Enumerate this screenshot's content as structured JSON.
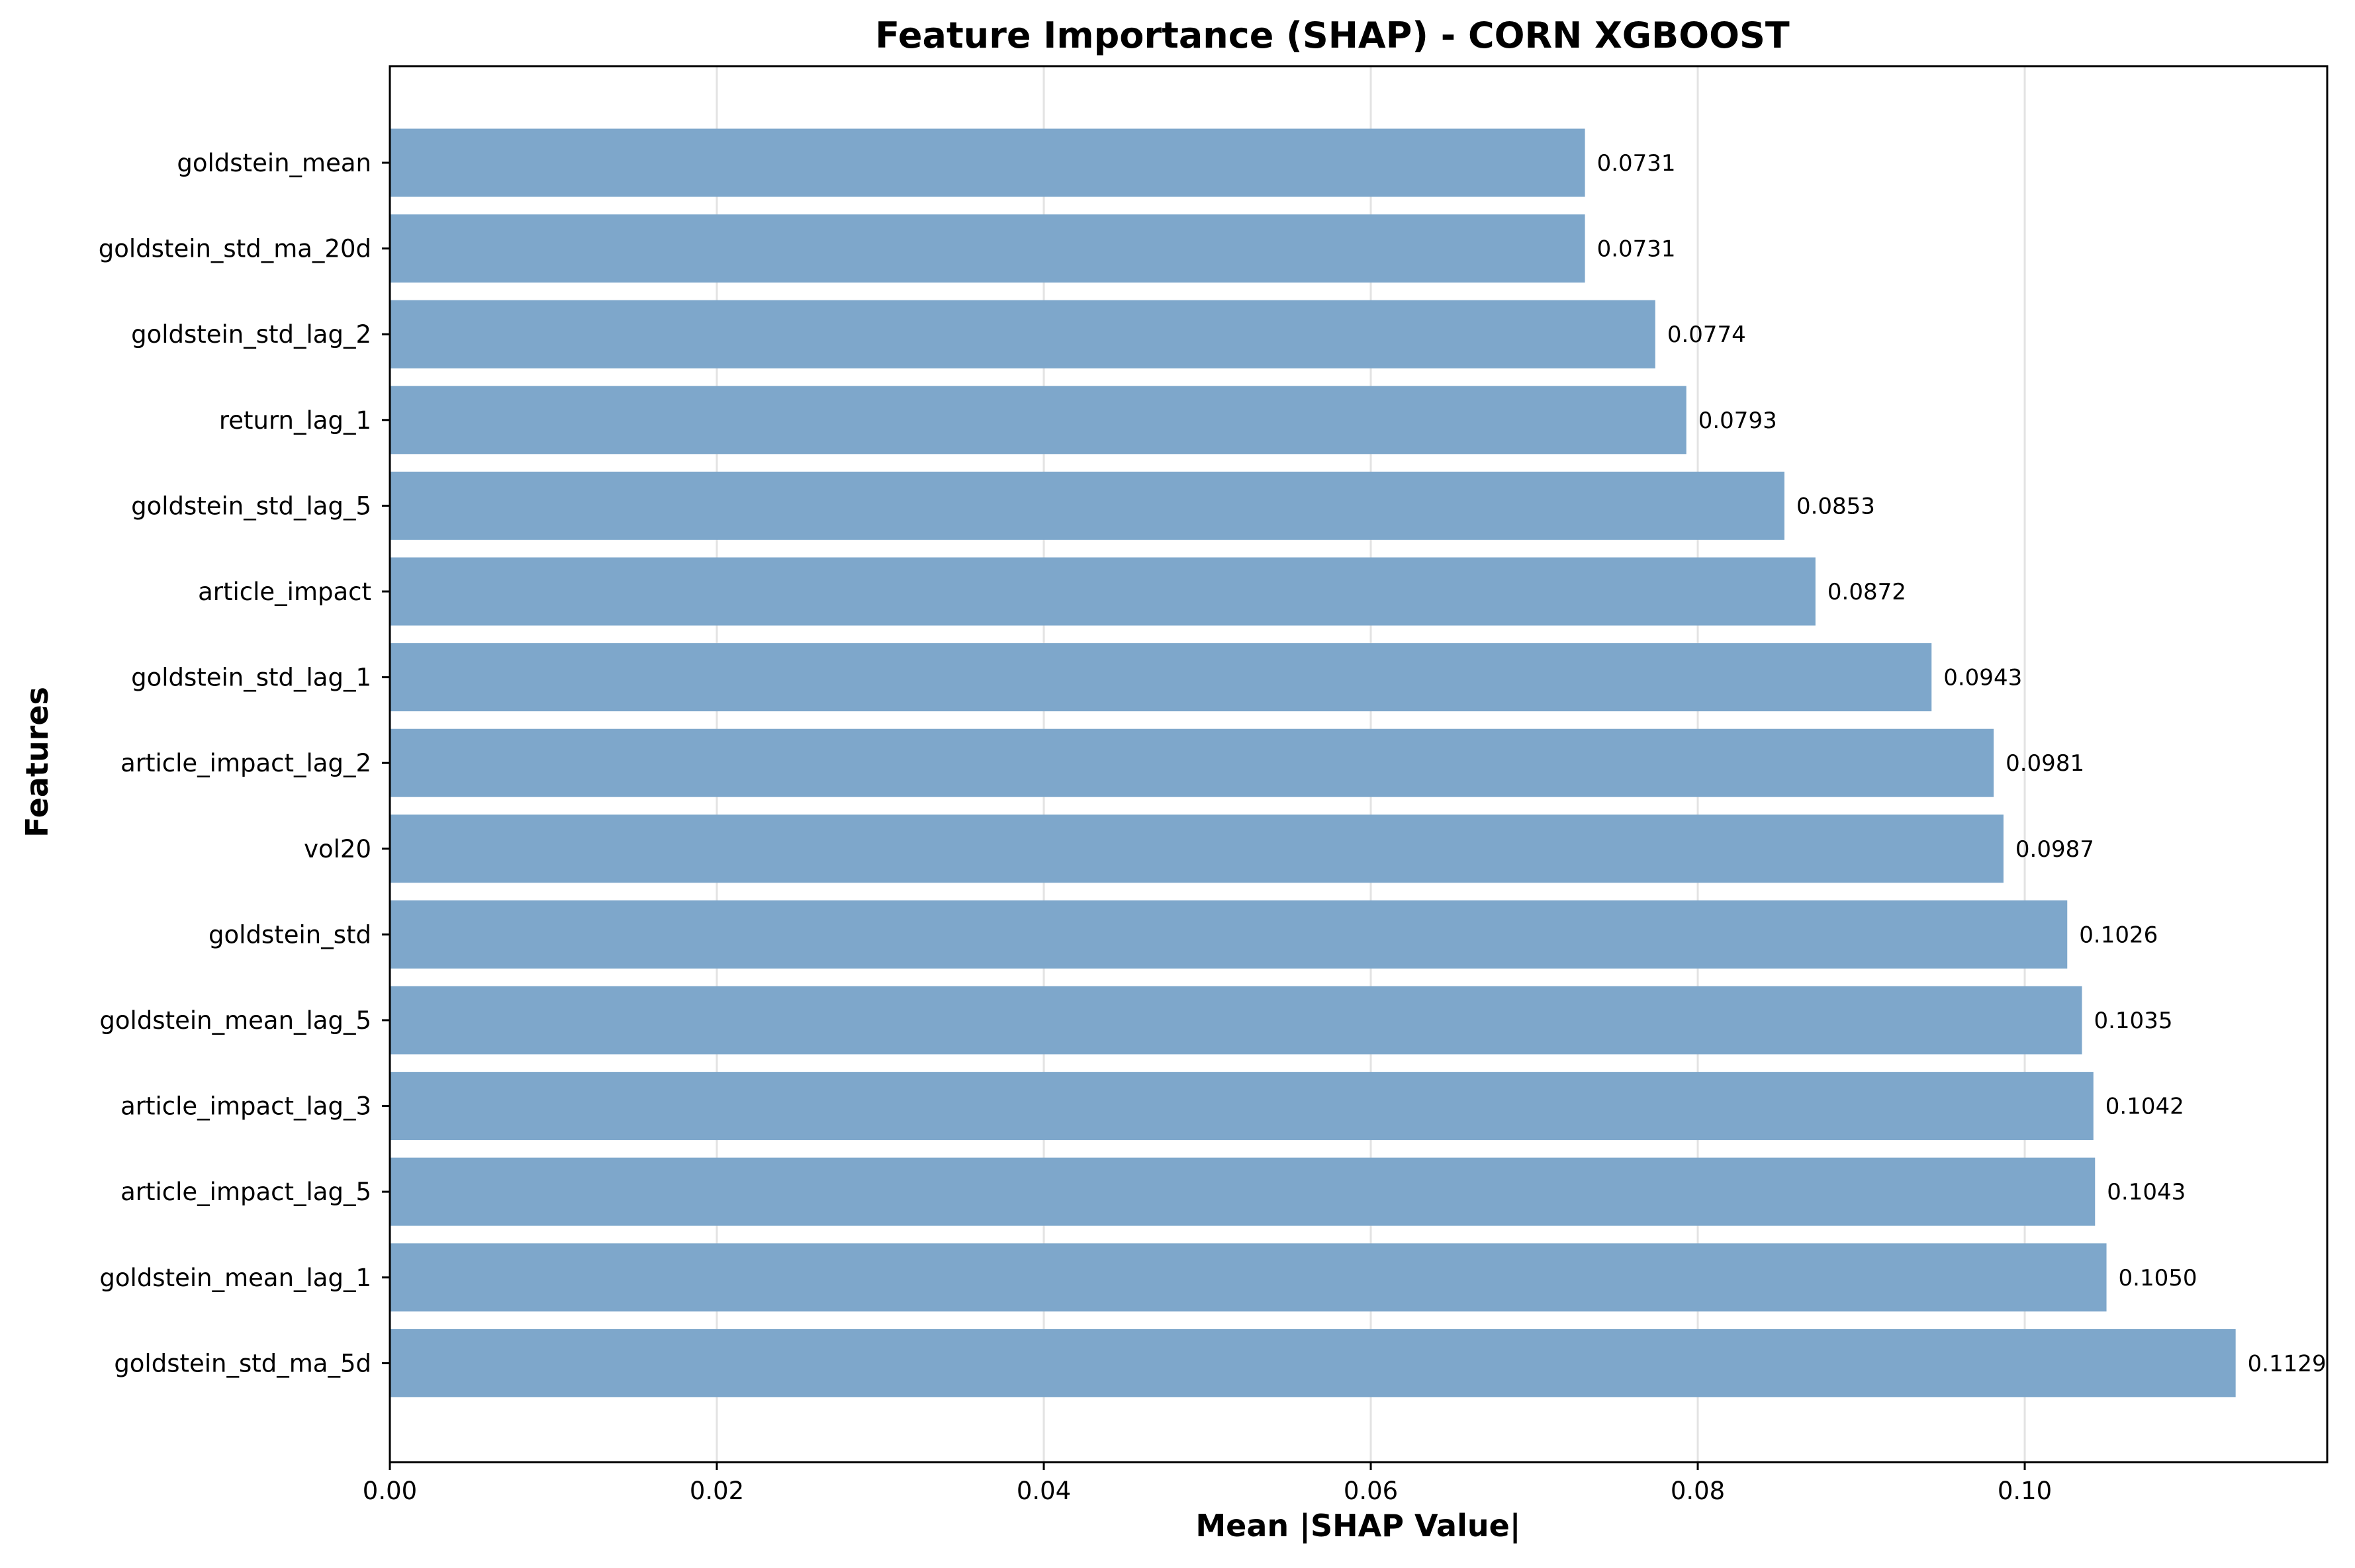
{
  "chart_data": {
    "type": "bar",
    "orientation": "horizontal",
    "title": "Feature Importance (SHAP) - CORN XGBOOST",
    "xlabel": "Mean |SHAP Value|",
    "ylabel": "Features",
    "xlim": [
      0,
      0.1185
    ],
    "xticks": [
      0.0,
      0.02,
      0.04,
      0.06,
      0.08,
      0.1
    ],
    "xtick_labels": [
      "0.00",
      "0.02",
      "0.04",
      "0.06",
      "0.08",
      "0.10"
    ],
    "grid": "vertical",
    "bar_color": "#7ea7cb",
    "categories": [
      "goldstein_mean",
      "goldstein_std_ma_20d",
      "goldstein_std_lag_2",
      "return_lag_1",
      "goldstein_std_lag_5",
      "article_impact",
      "goldstein_std_lag_1",
      "article_impact_lag_2",
      "vol20",
      "goldstein_std",
      "goldstein_mean_lag_5",
      "article_impact_lag_3",
      "article_impact_lag_5",
      "goldstein_mean_lag_1",
      "goldstein_std_ma_5d"
    ],
    "values": [
      0.0731,
      0.0731,
      0.0774,
      0.0793,
      0.0853,
      0.0872,
      0.0943,
      0.0981,
      0.0987,
      0.1026,
      0.1035,
      0.1042,
      0.1043,
      0.105,
      0.1129
    ],
    "value_labels": [
      "0.0731",
      "0.0731",
      "0.0774",
      "0.0793",
      "0.0853",
      "0.0872",
      "0.0943",
      "0.0981",
      "0.0987",
      "0.1026",
      "0.1035",
      "0.1042",
      "0.1043",
      "0.1050",
      "0.1129"
    ]
  }
}
